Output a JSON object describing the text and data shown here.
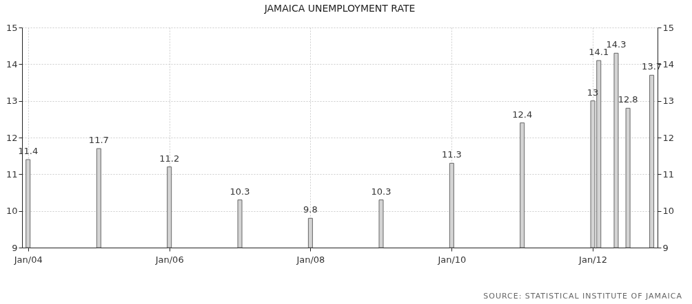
{
  "chart_data": {
    "type": "bar",
    "title": "JAMAICA UNEMPLOYMENT RATE",
    "x": [
      "2004-01",
      "2005-01",
      "2006-01",
      "2007-01",
      "2008-01",
      "2009-01",
      "2010-01",
      "2011-01",
      "2012-01",
      "2012-02",
      "2012-05",
      "2012-07",
      "2012-11"
    ],
    "values": [
      11.4,
      11.7,
      11.2,
      10.3,
      9.8,
      10.3,
      11.3,
      12.4,
      13,
      14.1,
      14.3,
      12.8,
      13.7
    ],
    "color": "#d4d4d4",
    "data_labels": true,
    "xlim": [
      "2003-12",
      "2012-12"
    ],
    "xticks": [
      {
        "value": "2004-01",
        "label": "Jan/04"
      },
      {
        "value": "2006-01",
        "label": "Jan/06"
      },
      {
        "value": "2008-01",
        "label": "Jan/08"
      },
      {
        "value": "2010-01",
        "label": "Jan/10"
      },
      {
        "value": "2012-01",
        "label": "Jan/12"
      }
    ],
    "ylim": [
      9,
      15
    ],
    "yticks": [
      9,
      10,
      11,
      12,
      13,
      14,
      15
    ],
    "y2lim": [
      9,
      15
    ],
    "y2ticks": [
      9,
      10,
      11,
      12,
      13,
      14,
      15
    ],
    "grid": true,
    "annotations": [
      "SOURCE: STATISTICAL INSTITUTE OF JAMAICA"
    ]
  }
}
